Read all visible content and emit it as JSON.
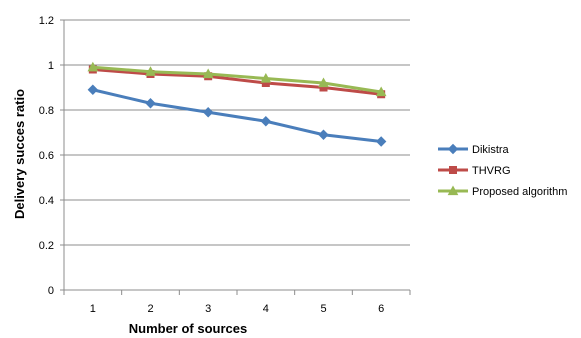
{
  "chart_data": {
    "type": "line",
    "title": "",
    "xlabel": "Number of sources",
    "ylabel": "Delivery succes ratio",
    "x": [
      "1",
      "2",
      "3",
      "4",
      "5",
      "6"
    ],
    "ylim": [
      0,
      1.2
    ],
    "yticks": [
      "0",
      "0.2",
      "0.4",
      "0.6",
      "0.8",
      "1",
      "1.2"
    ],
    "grid": "horizontal",
    "legend_position": "right",
    "series": [
      {
        "name": "Dikistra",
        "values": [
          0.89,
          0.83,
          0.79,
          0.75,
          0.69,
          0.66
        ],
        "color": "#4A7EBB",
        "marker": "diamond"
      },
      {
        "name": "THVRG",
        "values": [
          0.98,
          0.96,
          0.95,
          0.92,
          0.9,
          0.87
        ],
        "color": "#BE4B48",
        "marker": "square"
      },
      {
        "name": "Proposed algorithm",
        "values": [
          0.99,
          0.97,
          0.96,
          0.94,
          0.92,
          0.88
        ],
        "color": "#98B954",
        "marker": "triangle"
      }
    ]
  }
}
